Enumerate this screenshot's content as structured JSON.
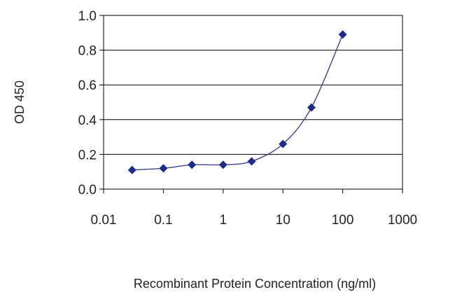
{
  "chart_data": {
    "type": "line",
    "title": "",
    "xlabel": "Recombinant Protein Concentration (ng/ml)",
    "ylabel": "OD 450",
    "x_scale": "log",
    "xlim": [
      0.01,
      1000
    ],
    "ylim": [
      0.0,
      1.0
    ],
    "x_ticks": [
      "0.01",
      "0.1",
      "1",
      "10",
      "100",
      "1000"
    ],
    "y_ticks": [
      "0.0",
      "0.2",
      "0.4",
      "0.6",
      "0.8",
      "1.0"
    ],
    "grid": "horizontal",
    "series": [
      {
        "x": [
          0.03,
          0.1,
          0.3,
          1,
          3,
          10,
          30,
          100
        ],
        "y": [
          0.11,
          0.12,
          0.14,
          0.14,
          0.16,
          0.26,
          0.47,
          0.89
        ]
      }
    ],
    "colors": {
      "line": "#3f3f9f",
      "marker": "#1c2c8c",
      "grid": "#000000"
    }
  }
}
